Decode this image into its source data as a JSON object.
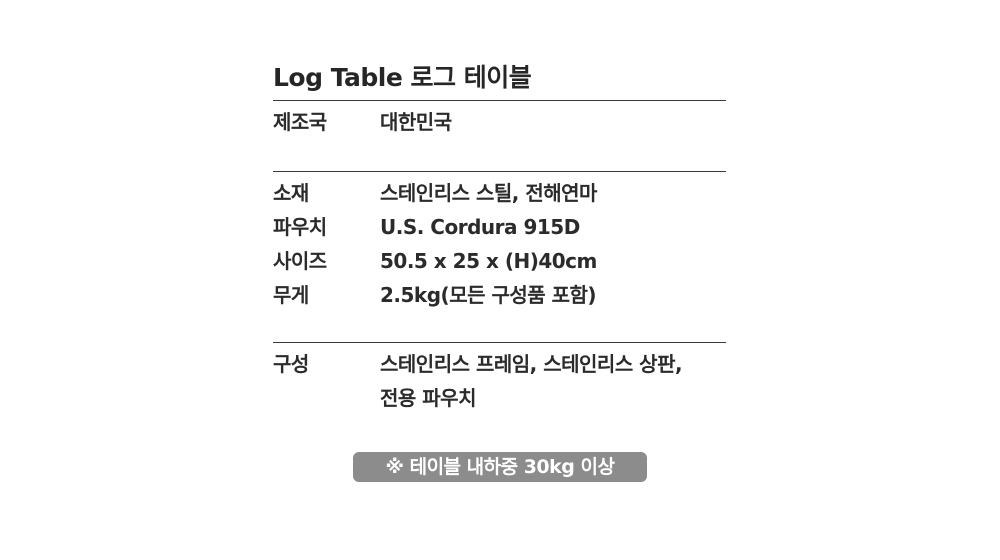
{
  "title": "Log Table 로그 테이블",
  "sections": [
    {
      "rows": [
        {
          "label": "제조국",
          "value": "대한민국"
        }
      ]
    },
    {
      "rows": [
        {
          "label": "소재",
          "value": "스테인리스 스틸, 전해연마"
        },
        {
          "label": "파우치",
          "value": "U.S. Cordura 915D"
        },
        {
          "label": "사이즈",
          "value": "50.5 x 25 x (H)40cm"
        },
        {
          "label": "무게",
          "value": "2.5kg(모든 구성품 포함)"
        }
      ]
    },
    {
      "rows": [
        {
          "label": "구성",
          "value": "스테인리스 프레임, 스테인리스 상판,"
        },
        {
          "label": "",
          "value": "전용 파우치"
        }
      ]
    }
  ],
  "badge": "※ 테이블 내하중 30kg 이상",
  "colors": {
    "text": "#2b2b2b",
    "divider": "#3a3a3a",
    "badge_bg": "#8c8c8c",
    "badge_text": "#ffffff"
  }
}
